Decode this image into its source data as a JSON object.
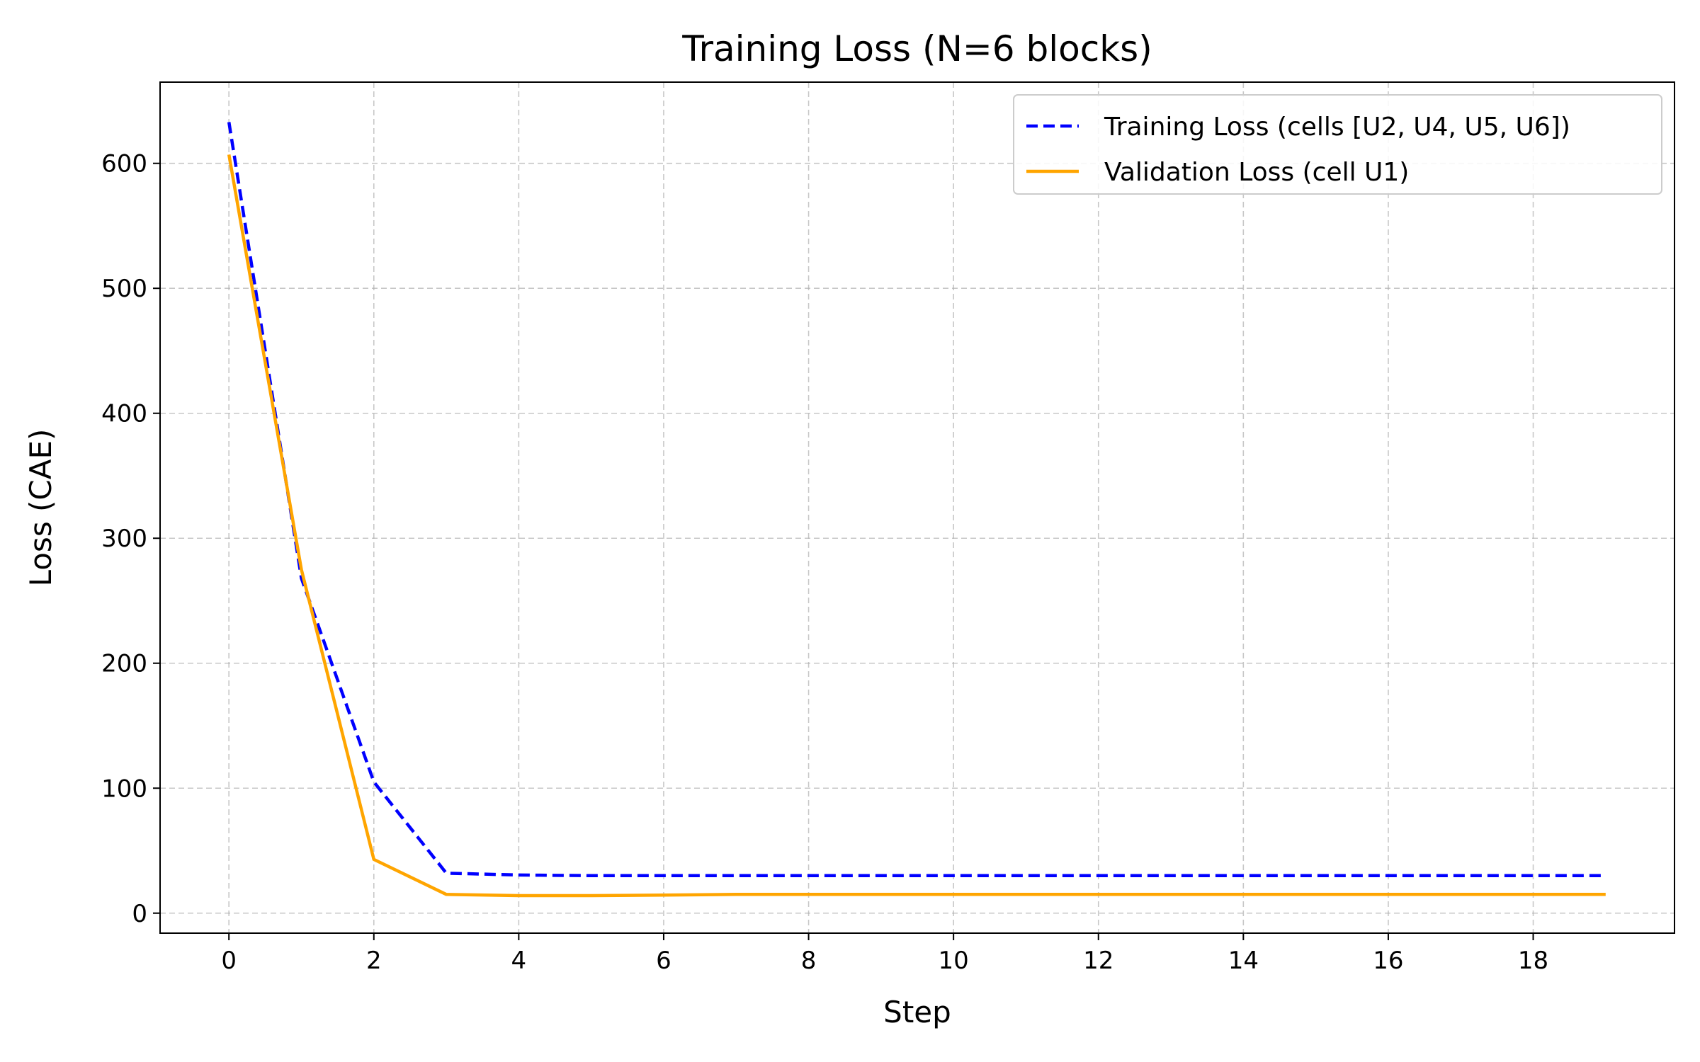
{
  "chart_data": {
    "type": "line",
    "title": "Training Loss (N=6 blocks)",
    "xlabel": "Step",
    "ylabel": "Loss (CAE)",
    "xlim": [
      -0.95,
      19.95
    ],
    "ylim": [
      -16,
      665
    ],
    "xticks": [
      0,
      2,
      4,
      6,
      8,
      10,
      12,
      14,
      16,
      18
    ],
    "yticks": [
      0,
      100,
      200,
      300,
      400,
      500,
      600
    ],
    "grid": true,
    "legend_position": "upper right",
    "x": [
      0,
      1,
      2,
      3,
      4,
      5,
      6,
      7,
      8,
      9,
      10,
      11,
      12,
      13,
      14,
      15,
      16,
      17,
      18,
      19
    ],
    "series": [
      {
        "name": "Training Loss (cells [U2, U4, U5, U6])",
        "color": "#0000ff",
        "style": "dashed",
        "values": [
          633,
          268,
          105,
          32,
          30.5,
          30,
          30,
          30,
          30,
          30,
          30,
          30,
          30,
          30,
          30,
          30,
          30,
          30,
          30,
          30
        ]
      },
      {
        "name": "Validation Loss (cell U1)",
        "color": "#ffa500",
        "style": "solid",
        "values": [
          607,
          275,
          43,
          15,
          14,
          14,
          14.5,
          15,
          15,
          15,
          15,
          15,
          15,
          15,
          15,
          15,
          15,
          15,
          15,
          15
        ]
      }
    ]
  }
}
